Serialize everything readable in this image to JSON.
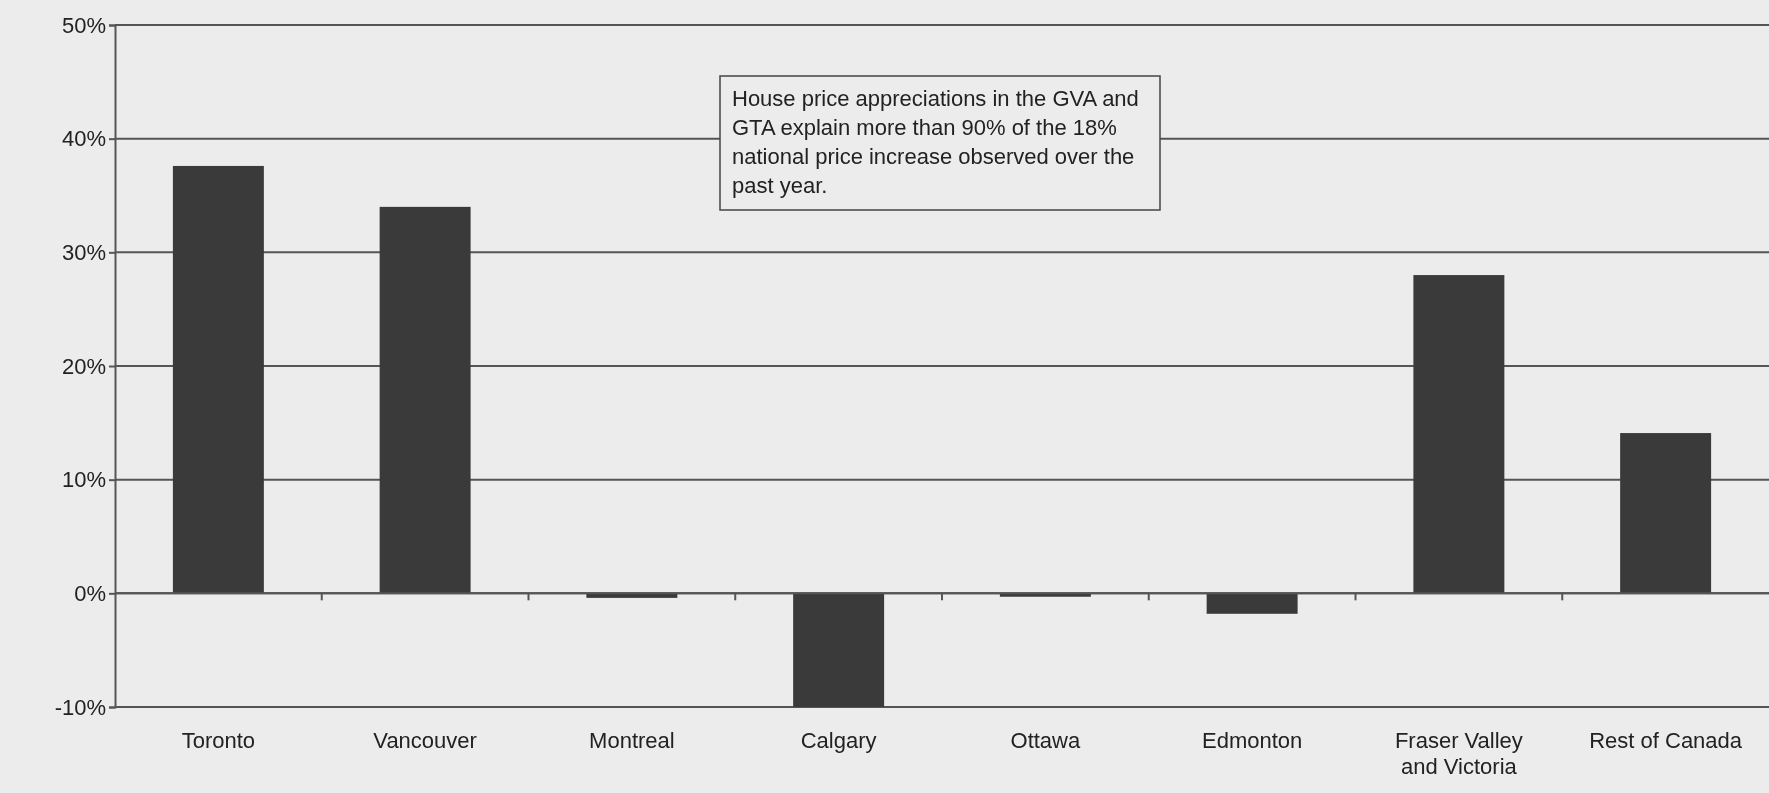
{
  "chart_data": {
    "type": "bar",
    "categories": [
      "Toronto",
      "Vancouver",
      "Montreal",
      "Calgary",
      "Ottawa",
      "Edmonton",
      "Fraser Valley and Victoria",
      "Rest of Canada"
    ],
    "values": [
      37.6,
      34.0,
      -0.4,
      -10,
      -0.3,
      -1.8,
      28.0,
      14.1
    ],
    "color": "#3a3a3a",
    "ylim": [
      -10,
      50
    ],
    "yticks": [
      {
        "value": -10,
        "label": "-10%"
      },
      {
        "value": 0,
        "label": "0%"
      },
      {
        "value": 10,
        "label": "10%"
      },
      {
        "value": 20,
        "label": "20%"
      },
      {
        "value": 30,
        "label": "30%"
      },
      {
        "value": 40,
        "label": "40%"
      },
      {
        "value": 50,
        "label": "50%"
      }
    ],
    "grid": "y",
    "annotations": [
      "House price appreciations in the GVA and GTA explain more than 90% of the 18% national price increase observed over the past year."
    ]
  }
}
